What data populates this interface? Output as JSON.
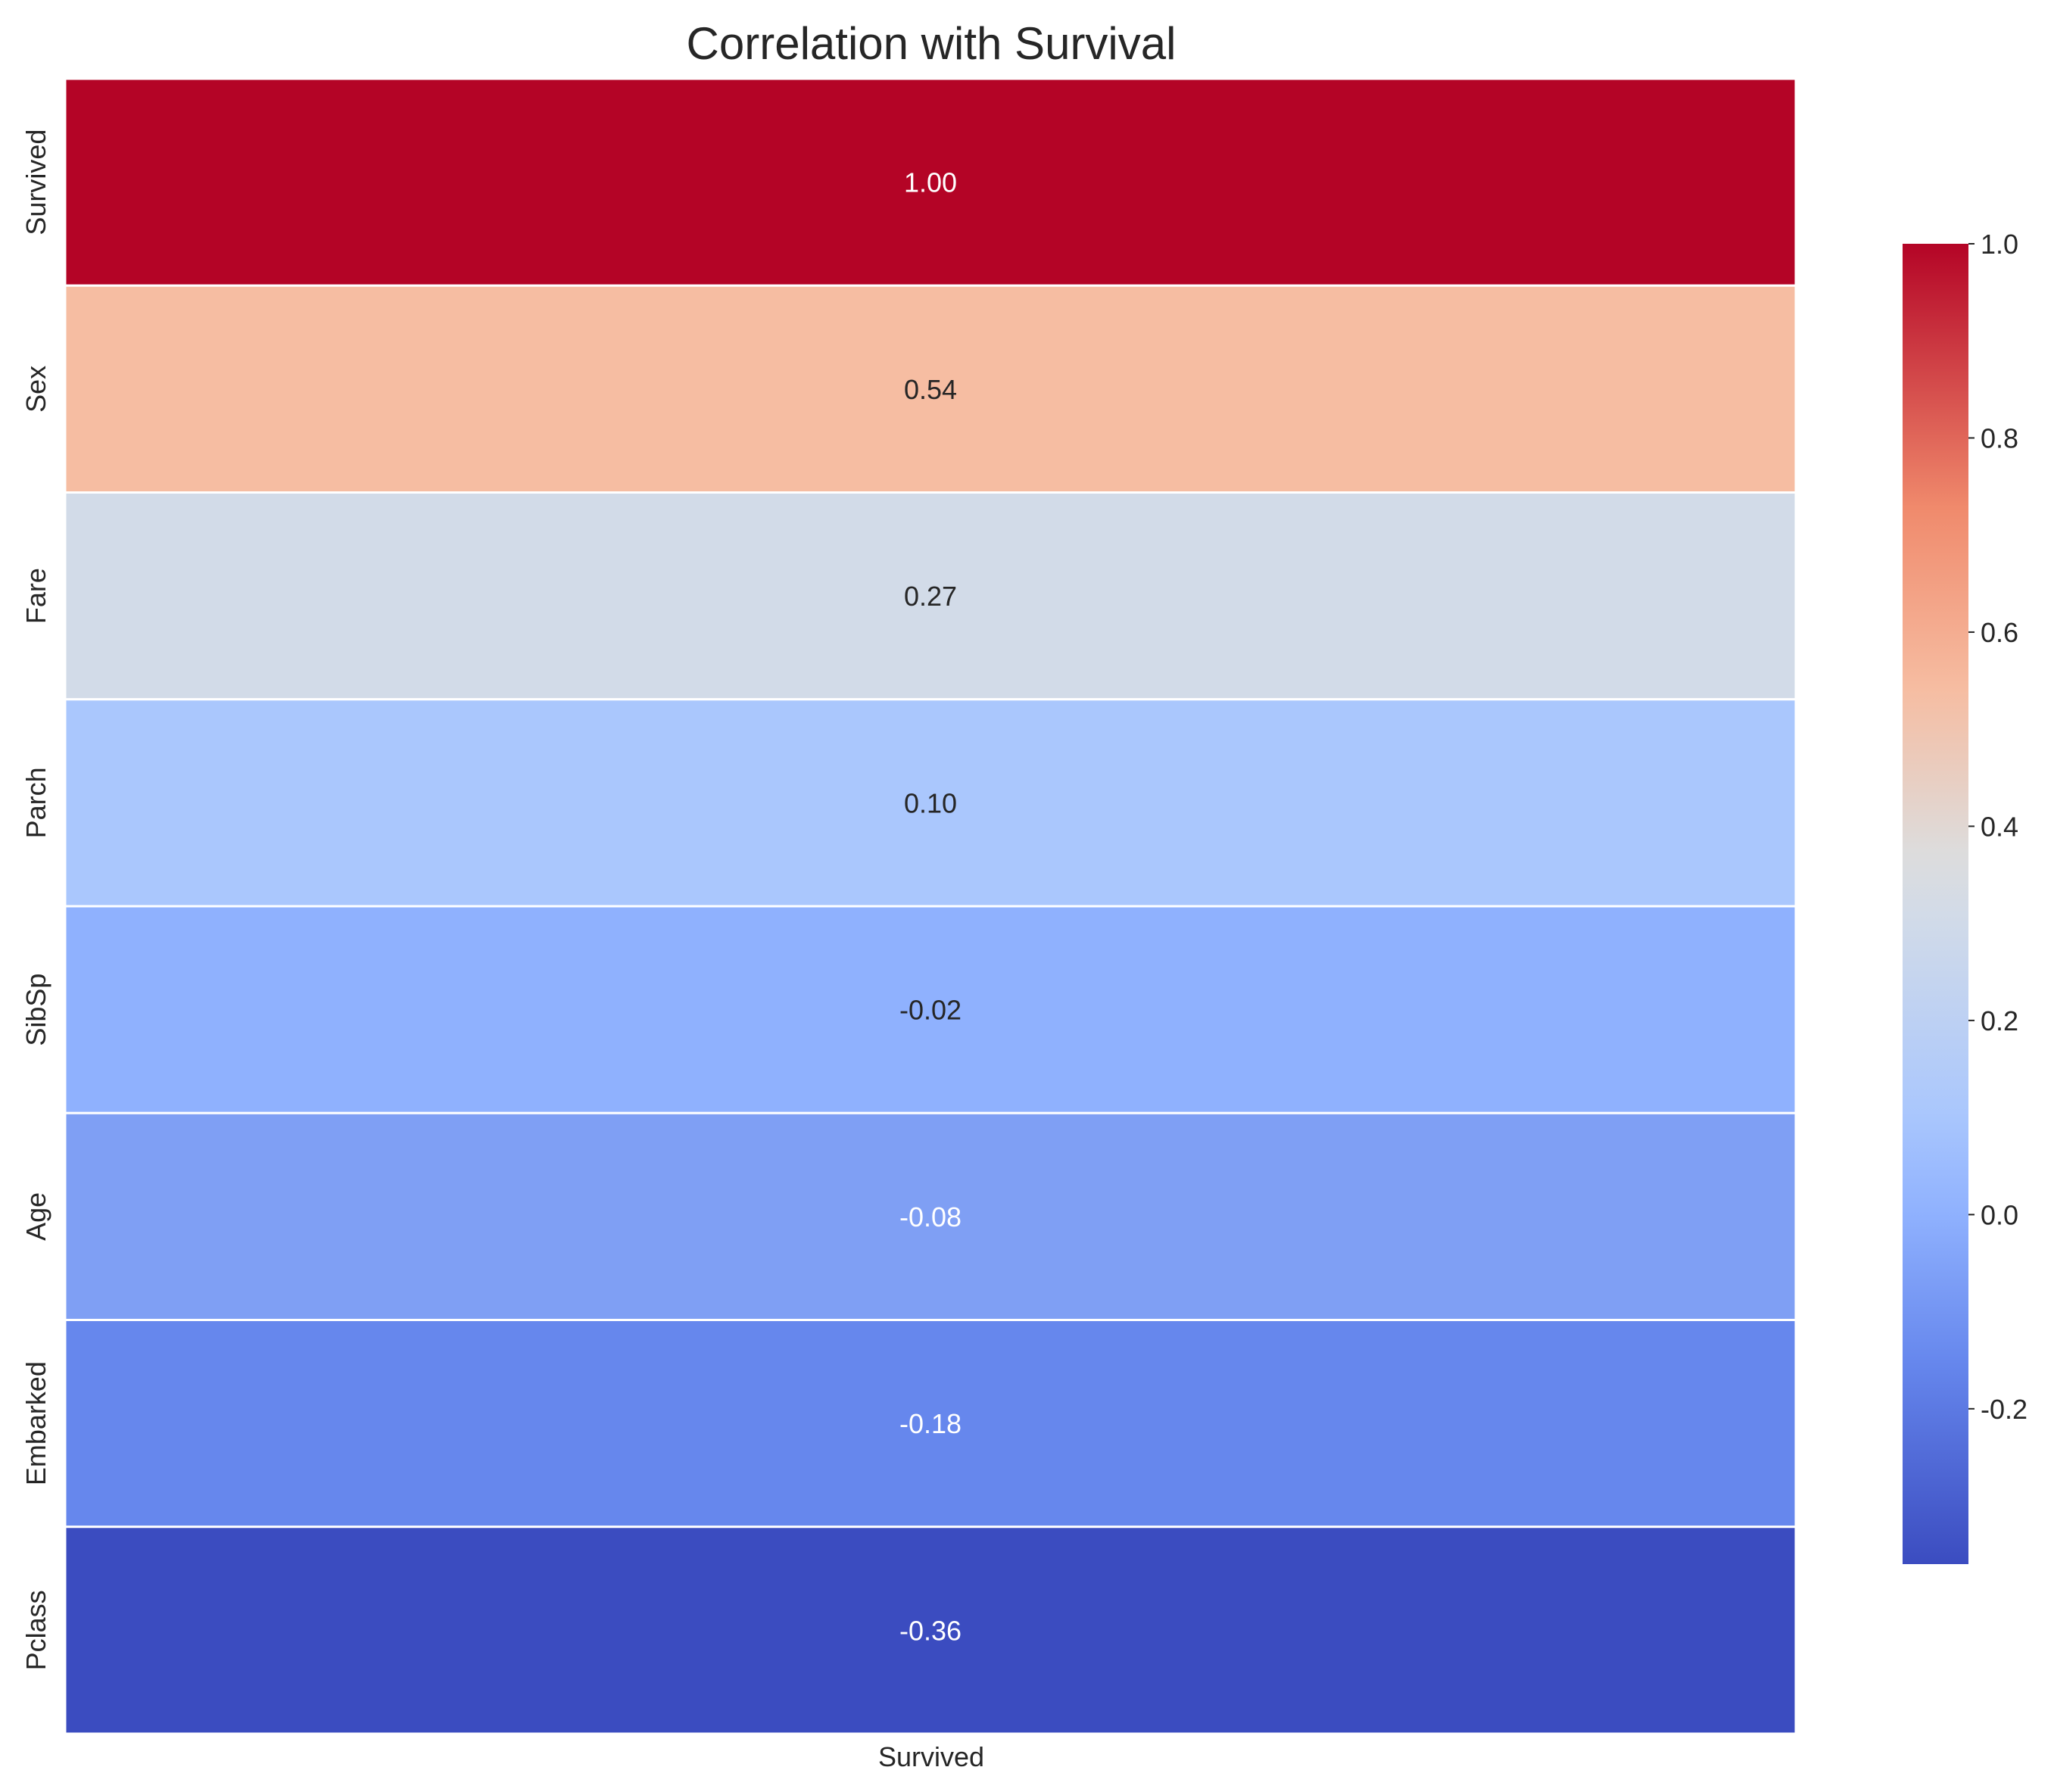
{
  "chart_data": {
    "type": "heatmap",
    "title": "Correlation with Survival",
    "columns": [
      "Survived"
    ],
    "rows": [
      "Survived",
      "Sex",
      "Fare",
      "Parch",
      "SibSp",
      "Age",
      "Embarked",
      "Pclass"
    ],
    "values": [
      1.0,
      0.54,
      0.27,
      0.1,
      -0.02,
      -0.08,
      -0.18,
      -0.36
    ],
    "value_labels": [
      "1.00",
      "0.54",
      "0.27",
      "0.10",
      "-0.02",
      "-0.08",
      "-0.18",
      "-0.36"
    ],
    "colormap": "coolwarm",
    "colorbar": {
      "vmin": -0.36,
      "vmax": 1.0,
      "ticks": [
        -0.2,
        0.0,
        0.2,
        0.4,
        0.6,
        0.8,
        1.0
      ],
      "tick_labels": [
        "-0.2",
        "0.0",
        "0.2",
        "0.4",
        "0.6",
        "0.8",
        "1.0"
      ]
    },
    "colors": {
      "1.00": "#b40426",
      "0.54": "#f6bda2",
      "0.27": "#d2dbe8",
      "0.10": "#aac7fd",
      "-0.02": "#8fb1fe",
      "-0.08": "#7f9ff4",
      "-0.18": "#6687ed",
      "-0.36": "#3b4cc0"
    }
  }
}
